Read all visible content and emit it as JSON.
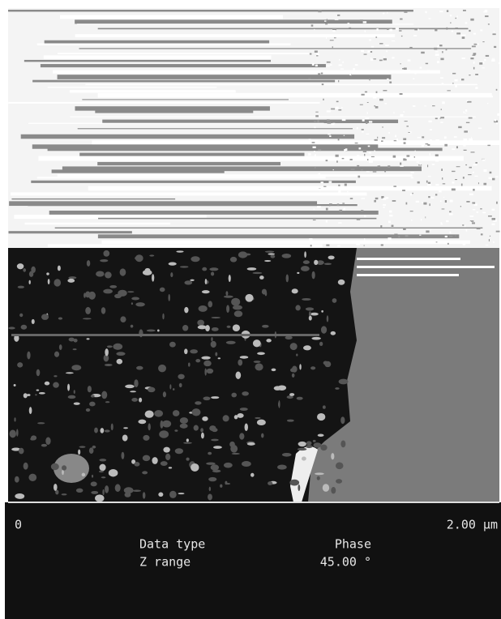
{
  "scale_bar": {
    "start": "0",
    "end": "2.00 µm"
  },
  "info": {
    "rows": [
      [
        "Data type",
        "Phase"
      ],
      [
        "Z range",
        "45.00 °"
      ]
    ]
  }
}
